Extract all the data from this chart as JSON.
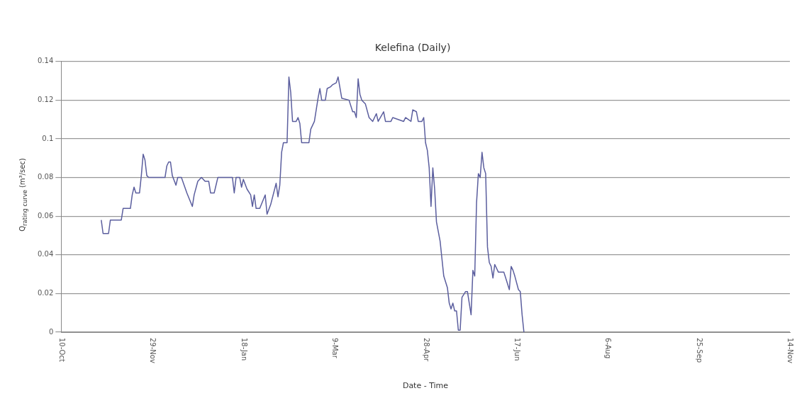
{
  "chart_data": {
    "type": "line",
    "title": "Kelefina (Daily)",
    "xlabel": "Date - Time",
    "ylabel": "Q$_{rating curve}$ (m³/sec)",
    "categories": [
      "10-Oct",
      null,
      null,
      null,
      null,
      null,
      null,
      null,
      null,
      null,
      null,
      null,
      null,
      null,
      null,
      null,
      null,
      null,
      null,
      null,
      null,
      null,
      null,
      null,
      null,
      null,
      null,
      null,
      null,
      null,
      null,
      null,
      null,
      null,
      null,
      null,
      null,
      null,
      null,
      null,
      null,
      null,
      null,
      null,
      null,
      null,
      null,
      null,
      null,
      null,
      "29-Nov",
      null,
      null,
      null,
      null,
      null,
      null,
      null,
      null,
      null,
      null,
      null,
      null,
      null,
      null,
      null,
      null,
      null,
      null,
      null,
      null,
      null,
      null,
      null,
      null,
      null,
      null,
      null,
      null,
      null,
      null,
      null,
      null,
      null,
      null,
      null,
      null,
      null,
      null,
      null,
      null,
      null,
      null,
      null,
      null,
      null,
      null,
      null,
      null,
      null,
      "18-Jan",
      null,
      null,
      null,
      null,
      null,
      null,
      null,
      null,
      null,
      null,
      null,
      null,
      null,
      null,
      null,
      null,
      null,
      null,
      null,
      null,
      null,
      null,
      null,
      null,
      null,
      null,
      null,
      null,
      null,
      null,
      null,
      null,
      null,
      null,
      null,
      null,
      null,
      null,
      null,
      null,
      null,
      null,
      null,
      null,
      null,
      null,
      null,
      null,
      null,
      "9-Mar",
      null,
      null,
      null,
      null,
      null,
      null,
      null,
      null,
      null,
      null,
      null,
      null,
      null,
      null,
      null,
      null,
      null,
      null,
      null,
      null,
      null,
      null,
      null,
      null,
      null,
      null,
      null,
      null,
      null,
      null,
      null,
      null,
      null,
      null,
      null,
      null,
      null,
      null,
      null,
      null,
      null,
      null,
      null,
      null,
      null,
      null,
      null,
      null,
      null,
      "28-Apr",
      null,
      null,
      null,
      null,
      null,
      null,
      null,
      null,
      null,
      null,
      null,
      null,
      null,
      null,
      null,
      null,
      null,
      null,
      null,
      null,
      null,
      null,
      null,
      null,
      null,
      null,
      null,
      null,
      null,
      null,
      null,
      null,
      null,
      null,
      null,
      null,
      null,
      null,
      null,
      null,
      null,
      null,
      null,
      null,
      null,
      null,
      null,
      null,
      null,
      "17-Jun",
      null,
      null,
      null,
      null,
      null,
      null,
      null,
      null,
      null,
      null,
      null,
      null,
      null,
      null,
      null,
      null,
      null,
      null,
      null,
      null,
      null,
      null,
      null,
      null,
      null,
      null,
      null,
      null,
      null,
      null,
      null,
      null,
      null,
      null,
      null,
      null,
      null,
      null,
      null,
      null,
      null,
      null,
      null,
      null,
      null,
      null,
      null,
      null,
      null,
      "6-Aug",
      null,
      null,
      null,
      null,
      null,
      null,
      null,
      null,
      null,
      null,
      null,
      null,
      null,
      null,
      null,
      null,
      null,
      null,
      null,
      null,
      null,
      null,
      null,
      null,
      null,
      null,
      null,
      null,
      null,
      null,
      null,
      null,
      null,
      null,
      null,
      null,
      null,
      null,
      null,
      null,
      null,
      null,
      null,
      null,
      null,
      null,
      null,
      null,
      null,
      "25-Sep",
      null,
      null,
      null,
      null,
      null,
      null,
      null,
      null,
      null,
      null,
      null,
      null,
      null,
      null,
      null,
      null,
      null,
      null,
      null,
      null,
      null,
      null,
      null,
      null,
      null,
      null,
      null,
      null,
      null,
      null,
      null,
      null,
      null,
      null,
      null,
      null,
      null,
      null,
      null,
      null,
      null,
      null,
      null,
      null,
      null,
      null,
      null,
      null,
      null,
      "14-Nov"
    ],
    "values": [
      null,
      null,
      null,
      null,
      null,
      null,
      null,
      null,
      null,
      null,
      null,
      null,
      null,
      null,
      null,
      null,
      null,
      null,
      null,
      null,
      null,
      null,
      0.058,
      0.051,
      null,
      null,
      0.051,
      0.058,
      null,
      null,
      null,
      null,
      null,
      0.058,
      0.064,
      null,
      null,
      null,
      0.064,
      0.071,
      0.075,
      0.072,
      null,
      0.072,
      0.081,
      0.092,
      0.089,
      0.081,
      0.08,
      null,
      null,
      null,
      null,
      null,
      null,
      null,
      0.08,
      0.08,
      0.086,
      0.088,
      0.088,
      0.081,
      null,
      0.076,
      0.08,
      null,
      0.08,
      null,
      null,
      0.072,
      null,
      null,
      0.065,
      0.071,
      null,
      0.078,
      null,
      0.08,
      null,
      0.078,
      null,
      0.078,
      0.072,
      null,
      0.072,
      0.076,
      0.08,
      null,
      null,
      null,
      null,
      null,
      null,
      null,
      0.08,
      0.072,
      0.08,
      null,
      0.08,
      0.075,
      0.079,
      null,
      0.074,
      null,
      0.071,
      0.065,
      0.071,
      0.064,
      null,
      0.064,
      null,
      null,
      0.071,
      0.061,
      null,
      0.066,
      null,
      null,
      0.077,
      0.07,
      0.076,
      0.093,
      0.098,
      null,
      0.098,
      0.132,
      0.124,
      0.109,
      null,
      0.109,
      0.111,
      0.108,
      0.098,
      null,
      null,
      null,
      0.098,
      0.105,
      null,
      0.109,
      null,
      0.121,
      0.126,
      0.12,
      null,
      0.12,
      0.126,
      null,
      0.127,
      0.128,
      null,
      0.129,
      0.132,
      null,
      0.121,
      null,
      null,
      null,
      0.12,
      null,
      0.114,
      0.114,
      0.111,
      0.131,
      0.123,
      0.12,
      null,
      0.118,
      null,
      0.111,
      null,
      0.109,
      null,
      0.113,
      0.109,
      null,
      null,
      0.114,
      0.109,
      null,
      null,
      0.109,
      0.111,
      null,
      null,
      null,
      null,
      null,
      0.109,
      0.111,
      null,
      null,
      0.109,
      0.115,
      null,
      0.114,
      0.109,
      null,
      0.109,
      0.111,
      0.098,
      0.094,
      0.085,
      0.065,
      0.085,
      0.074,
      0.057,
      null,
      0.047,
      0.038,
      0.029,
      null,
      0.023,
      0.015,
      0.012,
      0.015,
      0.011,
      0.011,
      0.001,
      0.001,
      0.018,
      null,
      0.021,
      0.021,
      0.015,
      0.009,
      0.032,
      0.029,
      0.067,
      0.082,
      0.08,
      0.093,
      0.085,
      0.082,
      0.044,
      0.036,
      0.034,
      0.028,
      0.035,
      null,
      0.031,
      null,
      null,
      0.031,
      0.028,
      null,
      0.022,
      0.034,
      0.032,
      0.029,
      null,
      0.022,
      0.021,
      0.009,
      0,
      null,
      null,
      null,
      null,
      null,
      null,
      null,
      null,
      null,
      null,
      null,
      null,
      null,
      null,
      null,
      null,
      null,
      null,
      null,
      null,
      null,
      null,
      null,
      null,
      null,
      null,
      null,
      null,
      null,
      null,
      null,
      null,
      null,
      null,
      null,
      null,
      null,
      null,
      null,
      null,
      null,
      null,
      null,
      null,
      null,
      null,
      null,
      null,
      null,
      null,
      null,
      null,
      null,
      null,
      null,
      null,
      null,
      null,
      null,
      null,
      null,
      null,
      null,
      null,
      null,
      null,
      null,
      null,
      null,
      null,
      null,
      null,
      null,
      null,
      null,
      null,
      null,
      null,
      null,
      null,
      null,
      null,
      null,
      null,
      null,
      null,
      null,
      null,
      null,
      null,
      null,
      null,
      null,
      null,
      null,
      null,
      null,
      null,
      null,
      null,
      null,
      null,
      null,
      null,
      null,
      null,
      null,
      null,
      null,
      null,
      null,
      null,
      null,
      null,
      null,
      null,
      null,
      null,
      null,
      null,
      null,
      null,
      null,
      null,
      null,
      null,
      null,
      null,
      null,
      null,
      null,
      null,
      null,
      null,
      null,
      null,
      null,
      null,
      null,
      null,
      null,
      null,
      null,
      null,
      null,
      null
    ],
    "color": "#5b5e9e",
    "marker": "none",
    "ylim": [
      0,
      0.14
    ],
    "yticks": [
      0,
      0.02,
      0.04,
      0.06,
      0.08,
      0.1,
      0.12,
      0.14
    ],
    "grid": "y"
  }
}
